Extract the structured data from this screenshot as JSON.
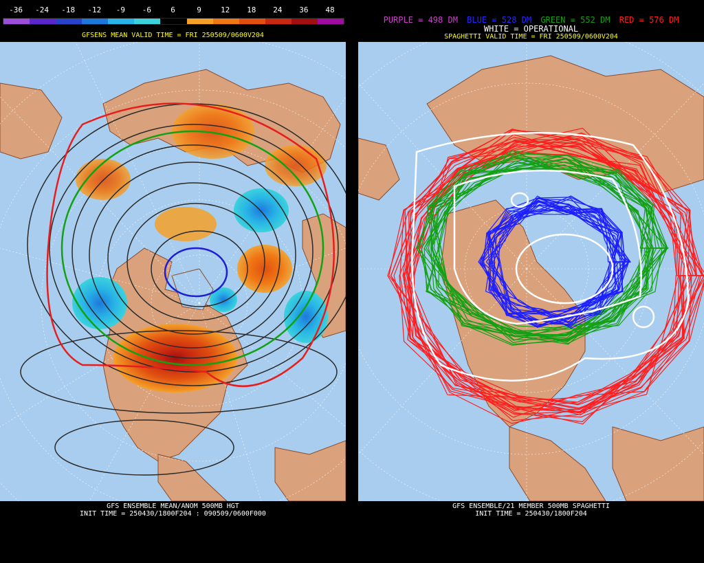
{
  "left_panel": {
    "legend": {
      "labels": [
        "-36",
        "-24",
        "-18",
        "-12",
        "-9",
        "-6",
        "6",
        "9",
        "12",
        "18",
        "24",
        "36",
        "48"
      ],
      "colors": [
        "#9b4fd9",
        "#5a28c8",
        "#2843c8",
        "#1e78dc",
        "#28b4e6",
        "#3cd2dc",
        "#000000",
        "#f5a028",
        "#f07814",
        "#e05010",
        "#c82810",
        "#a01010",
        "#a00ca0"
      ]
    },
    "header": "GFSENS MEAN VALID TIME = FRI 250509/0600V204",
    "footer_line1": "GFS ENSEMBLE MEAN/ANOM 500MB HGT",
    "footer_line2": "INIT TIME = 250430/1800F204 : 090509/0600F000"
  },
  "right_panel": {
    "contours": [
      {
        "label": "PURPLE = 498 DM",
        "color": "#d23cd2"
      },
      {
        "label": "BLUE = 528 DM",
        "color": "#2828ff"
      },
      {
        "label": "GREEN = 552 DM",
        "color": "#14a014"
      },
      {
        "label": "RED = 576 DM",
        "color": "#ff1e1e"
      }
    ],
    "operational": "WHITE = OPERATIONAL",
    "header": "SPAGHETTI VALID TIME = FRI 250509/0600V204",
    "footer_line1": "GFS ENSEMBLE/21 MEMBER 500MB SPAGHETTI",
    "footer_line2": "INIT TIME = 250430/1800F204"
  },
  "colors": {
    "ocean": "#a8cdef",
    "land": "#d9a27c",
    "border": "#8b4a2a",
    "header_yellow": "#ffff00"
  }
}
